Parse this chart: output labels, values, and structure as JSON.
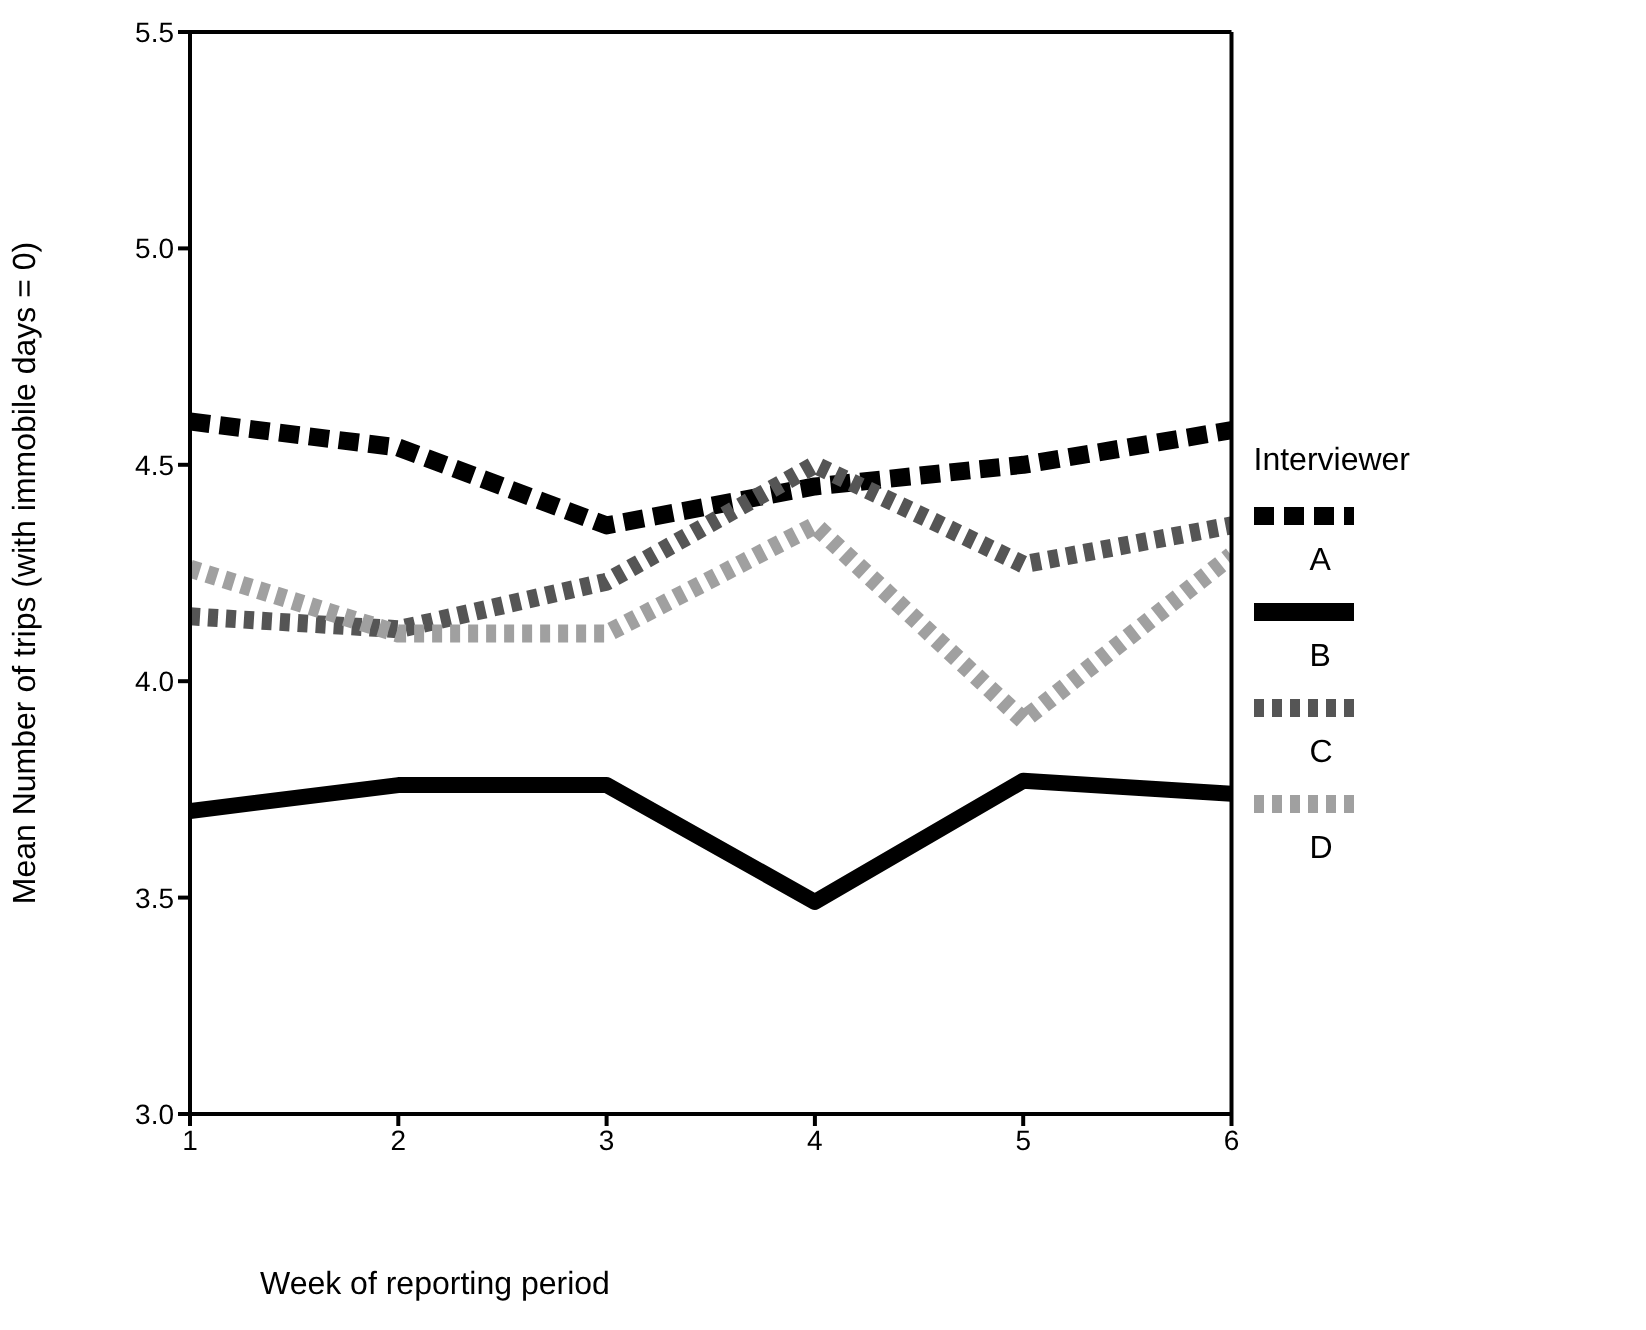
{
  "chart_data": {
    "type": "line",
    "xlabel": "Week of reporting period",
    "ylabel": "Mean Number of trips (with immobile days = 0)",
    "legend_title": "Interviewer",
    "x": [
      1,
      2,
      3,
      4,
      5,
      6
    ],
    "xlim": [
      1,
      6
    ],
    "xticks": [
      1,
      2,
      3,
      4,
      5,
      6
    ],
    "ylim": [
      3,
      5.5
    ],
    "yticks": [
      {
        "value": 3,
        "label": "3.0"
      },
      {
        "value": 3.5,
        "label": "3.5"
      },
      {
        "value": 4,
        "label": "4.0"
      },
      {
        "value": 4.5,
        "label": "4.5"
      },
      {
        "value": 5,
        "label": "5.0"
      },
      {
        "value": 5.5,
        "label": "5.5"
      }
    ],
    "legend": "right",
    "marker": "none",
    "series": [
      {
        "name": "A",
        "color": "#000000",
        "line_style": "dashed",
        "values": [
          4.6,
          4.54,
          4.36,
          4.45,
          4.5,
          4.58
        ]
      },
      {
        "name": "B",
        "color": "#000000",
        "line_style": "solid",
        "values": [
          3.7,
          3.76,
          3.76,
          3.49,
          3.77,
          3.74
        ]
      },
      {
        "name": "C",
        "color": "#555555",
        "line_style": "dotted",
        "values": [
          4.15,
          4.12,
          4.23,
          4.5,
          4.27,
          4.36
        ]
      },
      {
        "name": "D",
        "color": "#a0a0a0",
        "line_style": "dotted",
        "values": [
          4.26,
          4.11,
          4.11,
          4.36,
          3.91,
          4.29
        ]
      }
    ]
  }
}
